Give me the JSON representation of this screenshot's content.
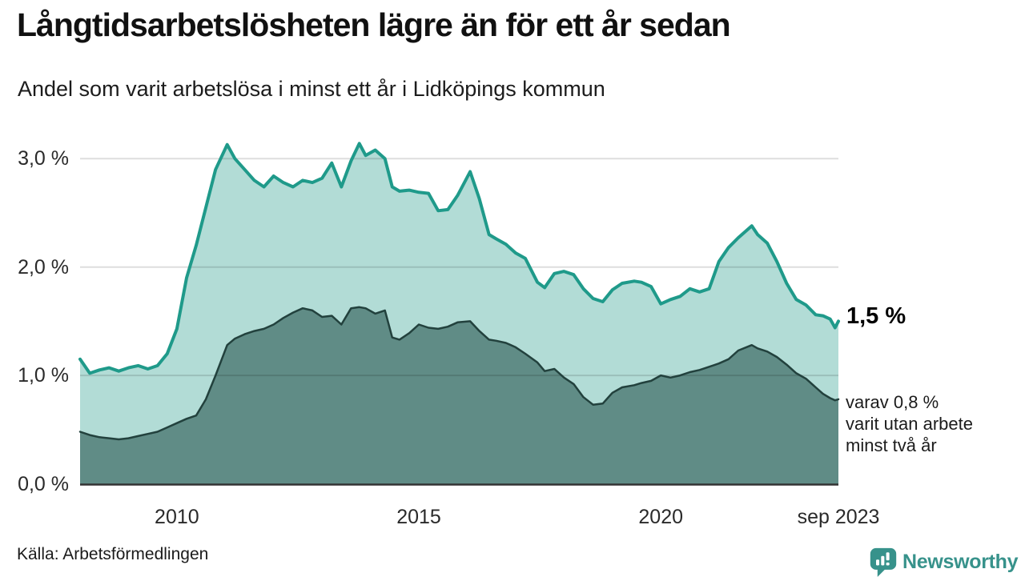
{
  "title": "Långtidsarbetslösheten lägre än för ett år sedan",
  "subtitle": "Andel som varit arbetslösa i minst ett år i Lidköpings kommun",
  "source": "Källa: Arbetsförmedlingen",
  "logo": {
    "text": "Newsworthy",
    "color": "#37928b"
  },
  "annotations": {
    "end_value": "1,5 %",
    "secondary_lines": [
      "varav 0,8 %",
      "varit utan arbete",
      "minst två år"
    ]
  },
  "chart_data": {
    "type": "area",
    "title": "Långtidsarbetslösheten lägre än för ett år sedan",
    "subtitle": "Andel som varit arbetslösa i minst ett år i Lidköpings kommun",
    "unit": "percent",
    "xlim": [
      2008.0,
      2023.67
    ],
    "ylim": [
      0,
      3.25
    ],
    "grid": true,
    "yticks": {
      "values": [
        0,
        1,
        2,
        3
      ],
      "labels": [
        "0,0 %",
        "1,0 %",
        "2,0 %",
        "3,0 %"
      ]
    },
    "xticks": {
      "values": [
        2010,
        2015,
        2020,
        2023.67
      ],
      "labels": [
        "2010",
        "2015",
        "2020",
        "sep 2023"
      ]
    },
    "x": [
      2008.0,
      2008.2,
      2008.4,
      2008.6,
      2008.8,
      2009.0,
      2009.2,
      2009.4,
      2009.6,
      2009.8,
      2010.0,
      2010.2,
      2010.4,
      2010.6,
      2010.8,
      2011.04,
      2011.2,
      2011.4,
      2011.6,
      2011.8,
      2012.0,
      2012.2,
      2012.4,
      2012.6,
      2012.8,
      2013.0,
      2013.2,
      2013.4,
      2013.6,
      2013.77,
      2013.9,
      2014.1,
      2014.3,
      2014.45,
      2014.6,
      2014.8,
      2015.0,
      2015.2,
      2015.4,
      2015.6,
      2015.8,
      2016.06,
      2016.25,
      2016.45,
      2016.6,
      2016.8,
      2017.0,
      2017.2,
      2017.45,
      2017.6,
      2017.8,
      2018.0,
      2018.2,
      2018.4,
      2018.6,
      2018.8,
      2019.0,
      2019.2,
      2019.45,
      2019.6,
      2019.8,
      2020.0,
      2020.2,
      2020.4,
      2020.6,
      2020.8,
      2021.0,
      2021.2,
      2021.4,
      2021.6,
      2021.88,
      2022.0,
      2022.2,
      2022.4,
      2022.6,
      2022.8,
      2023.0,
      2023.2,
      2023.35,
      2023.5,
      2023.6,
      2023.67
    ],
    "series": [
      {
        "name": "Andel arbetslösa minst ett år",
        "end_label": "1,5 %",
        "line_color": "#1f9a8a",
        "fill_color": "#b2dcd6",
        "line_width": 4,
        "values": [
          1.15,
          1.02,
          1.05,
          1.07,
          1.04,
          1.07,
          1.09,
          1.06,
          1.09,
          1.2,
          1.43,
          1.9,
          2.2,
          2.55,
          2.9,
          3.13,
          3.0,
          2.9,
          2.8,
          2.74,
          2.84,
          2.78,
          2.74,
          2.8,
          2.78,
          2.82,
          2.96,
          2.74,
          2.98,
          3.14,
          3.03,
          3.08,
          3.0,
          2.74,
          2.7,
          2.71,
          2.69,
          2.68,
          2.52,
          2.53,
          2.66,
          2.88,
          2.63,
          2.3,
          2.26,
          2.21,
          2.13,
          2.08,
          1.86,
          1.81,
          1.94,
          1.96,
          1.93,
          1.8,
          1.71,
          1.68,
          1.79,
          1.85,
          1.87,
          1.86,
          1.82,
          1.66,
          1.7,
          1.73,
          1.8,
          1.77,
          1.8,
          2.05,
          2.18,
          2.27,
          2.38,
          2.3,
          2.22,
          2.05,
          1.85,
          1.7,
          1.65,
          1.56,
          1.55,
          1.52,
          1.44,
          1.5
        ]
      },
      {
        "name": "varav utan arbete minst två år",
        "end_label": "0,8 %",
        "line_color": "#22413d",
        "fill_color": "#608c86",
        "line_width": 2.5,
        "values": [
          0.48,
          0.45,
          0.43,
          0.42,
          0.41,
          0.42,
          0.44,
          0.46,
          0.48,
          0.52,
          0.56,
          0.6,
          0.63,
          0.78,
          1.0,
          1.28,
          1.34,
          1.38,
          1.41,
          1.43,
          1.47,
          1.53,
          1.58,
          1.62,
          1.6,
          1.54,
          1.55,
          1.47,
          1.62,
          1.63,
          1.62,
          1.57,
          1.6,
          1.35,
          1.33,
          1.39,
          1.47,
          1.44,
          1.43,
          1.45,
          1.49,
          1.5,
          1.41,
          1.33,
          1.32,
          1.3,
          1.26,
          1.2,
          1.12,
          1.04,
          1.06,
          0.98,
          0.92,
          0.8,
          0.73,
          0.74,
          0.84,
          0.89,
          0.91,
          0.93,
          0.95,
          1.0,
          0.98,
          1.0,
          1.03,
          1.05,
          1.08,
          1.11,
          1.15,
          1.23,
          1.28,
          1.25,
          1.22,
          1.17,
          1.1,
          1.02,
          0.97,
          0.89,
          0.83,
          0.79,
          0.77,
          0.78
        ]
      }
    ],
    "grid_color": "rgba(0,0,0,0.13)",
    "baseline_color": "#333333"
  }
}
